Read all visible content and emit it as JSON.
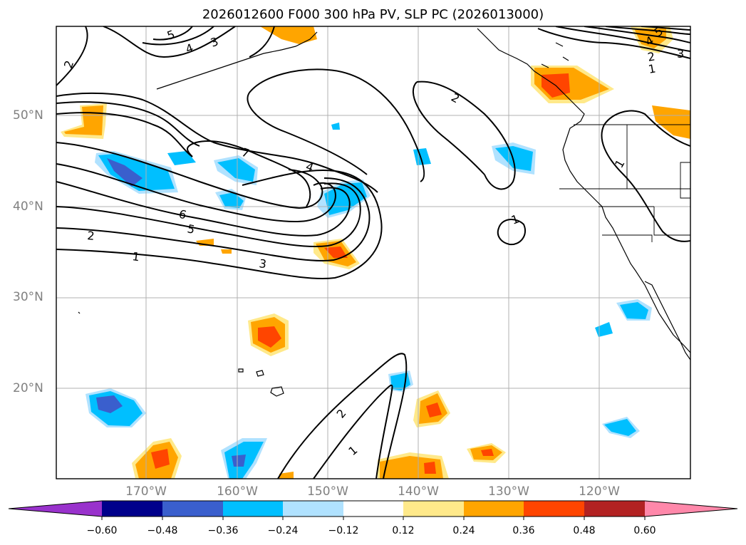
{
  "title": "2026012600 F000 300 hPa PV, SLP PC (2026013000)",
  "map": {
    "lat_labels": [
      "50°N",
      "40°N",
      "30°N",
      "20°N"
    ],
    "lon_labels": [
      "170°W",
      "160°W",
      "150°W",
      "140°W",
      "130°W",
      "120°W"
    ],
    "contour_labels": [
      "1",
      "2",
      "3",
      "4",
      "5",
      "6",
      "7",
      "2",
      "4",
      "5",
      "3",
      "2",
      "1",
      "1",
      "1",
      "2",
      "1",
      "2",
      "4",
      "5",
      "3"
    ]
  },
  "colorbar": {
    "tick_labels": [
      "−0.60",
      "−0.48",
      "−0.36",
      "−0.24",
      "−0.12",
      "0.12",
      "0.24",
      "0.36",
      "0.48",
      "0.60"
    ],
    "colors": [
      "#9932cc",
      "#00008b",
      "#3a5fcd",
      "#00bfff",
      "#b0e2ff",
      "#ffffff",
      "#ffe98a",
      "#ffa500",
      "#ff4500",
      "#b22222",
      "#ff88aa"
    ]
  },
  "legend": {
    "pv_negative_strong": "#3a5fcd",
    "pv_negative": "#00bfff",
    "pv_negative_weak": "#b0e2ff",
    "pv_positive_weak": "#ffe98a",
    "pv_positive": "#ffa500",
    "pv_positive_strong": "#ff4500"
  }
}
